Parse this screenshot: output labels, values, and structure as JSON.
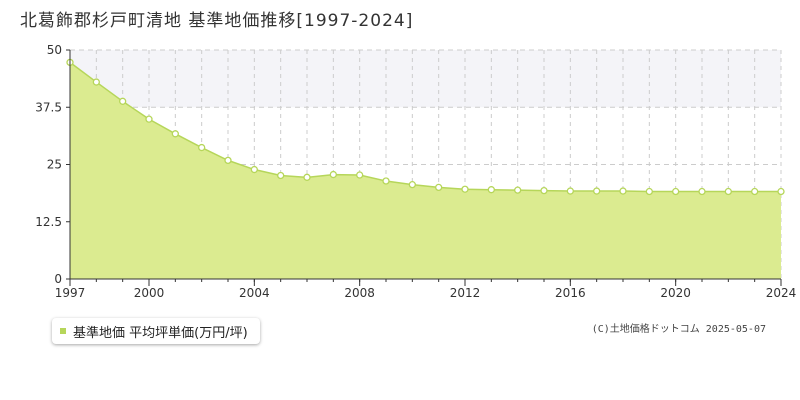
{
  "title": "北葛飾郡杉戸町清地 基準地価推移[1997-2024]",
  "copyright": "(C)土地価格ドットコム 2025-05-07",
  "colors": {
    "fill": "#dbeb90",
    "line": "#b6d65a",
    "marker_fill": "#ffffff",
    "band": "#f4f4f8",
    "grid": "#cccccc",
    "axis": "#333333"
  },
  "chart_data": {
    "type": "area",
    "title": "北葛飾郡杉戸町清地 基準地価推移[1997-2024]",
    "series": [
      {
        "name": "基準地価 平均坪単価(万円/坪)",
        "x": [
          1997,
          1998,
          1999,
          2000,
          2001,
          2002,
          2003,
          2004,
          2005,
          2006,
          2007,
          2008,
          2009,
          2010,
          2011,
          2012,
          2013,
          2014,
          2015,
          2016,
          2017,
          2018,
          2019,
          2020,
          2021,
          2022,
          2023,
          2024
        ],
        "values": [
          47.3,
          43.0,
          38.8,
          34.9,
          31.7,
          28.7,
          25.9,
          23.9,
          22.6,
          22.2,
          22.8,
          22.7,
          21.4,
          20.6,
          20.0,
          19.6,
          19.5,
          19.4,
          19.3,
          19.2,
          19.2,
          19.2,
          19.1,
          19.1,
          19.1,
          19.1,
          19.1,
          19.1
        ]
      }
    ],
    "xlim": [
      1997,
      2024
    ],
    "ylim": [
      0,
      50
    ],
    "x_ticks": [
      1997,
      2000,
      2004,
      2008,
      2012,
      2016,
      2020,
      2024
    ],
    "y_ticks": [
      0,
      12.5,
      25,
      37.5,
      50
    ],
    "y_tick_labels": [
      "0",
      "12.5",
      "25",
      "37.5",
      "50"
    ],
    "band": [
      37.5,
      50
    ],
    "grid": true,
    "legend_position": "bottom-left"
  }
}
